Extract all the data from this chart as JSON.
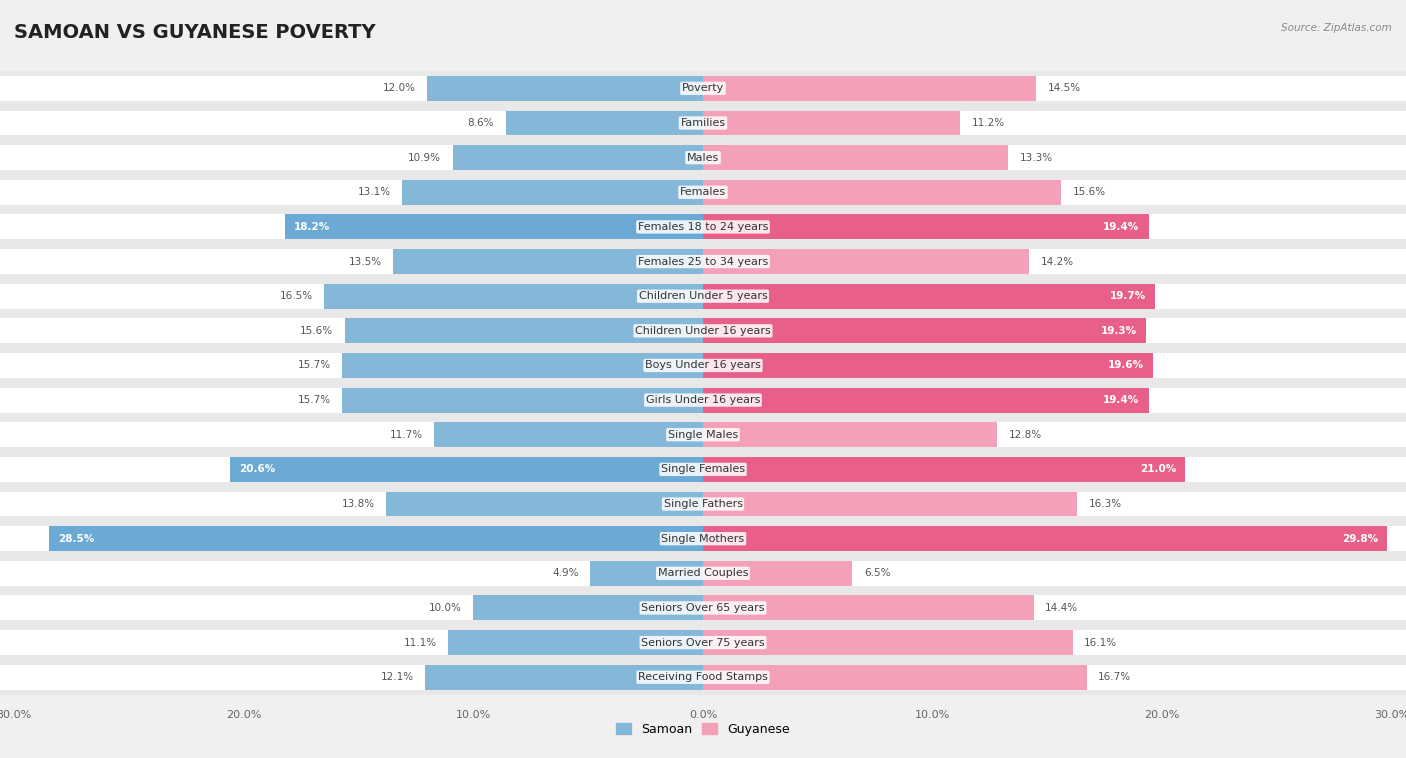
{
  "title": "SAMOAN VS GUYANESE POVERTY",
  "source": "Source: ZipAtlas.com",
  "categories": [
    "Poverty",
    "Families",
    "Males",
    "Females",
    "Females 18 to 24 years",
    "Females 25 to 34 years",
    "Children Under 5 years",
    "Children Under 16 years",
    "Boys Under 16 years",
    "Girls Under 16 years",
    "Single Males",
    "Single Females",
    "Single Fathers",
    "Single Mothers",
    "Married Couples",
    "Seniors Over 65 years",
    "Seniors Over 75 years",
    "Receiving Food Stamps"
  ],
  "samoan": [
    12.0,
    8.6,
    10.9,
    13.1,
    18.2,
    13.5,
    16.5,
    15.6,
    15.7,
    15.7,
    11.7,
    20.6,
    13.8,
    28.5,
    4.9,
    10.0,
    11.1,
    12.1
  ],
  "guyanese": [
    14.5,
    11.2,
    13.3,
    15.6,
    19.4,
    14.2,
    19.7,
    19.3,
    19.6,
    19.4,
    12.8,
    21.0,
    16.3,
    29.8,
    6.5,
    14.4,
    16.1,
    16.7
  ],
  "samoan_color": "#85b8d8",
  "guyanese_color": "#f4a0b8",
  "samoan_highlight_color": "#6aaad4",
  "guyanese_highlight_color": "#e8608a",
  "highlight_samoan": [
    4,
    11,
    13
  ],
  "highlight_guyanese": [
    4,
    6,
    7,
    8,
    9,
    11,
    13
  ],
  "row_bg_color": "#e8e8e8",
  "bar_bg_color": "#f5f5f5",
  "background_color": "#f0f0f0",
  "xlim": 30.0,
  "bar_height": 0.72,
  "title_fontsize": 14,
  "label_fontsize": 8,
  "value_fontsize": 7.5,
  "legend_fontsize": 9
}
